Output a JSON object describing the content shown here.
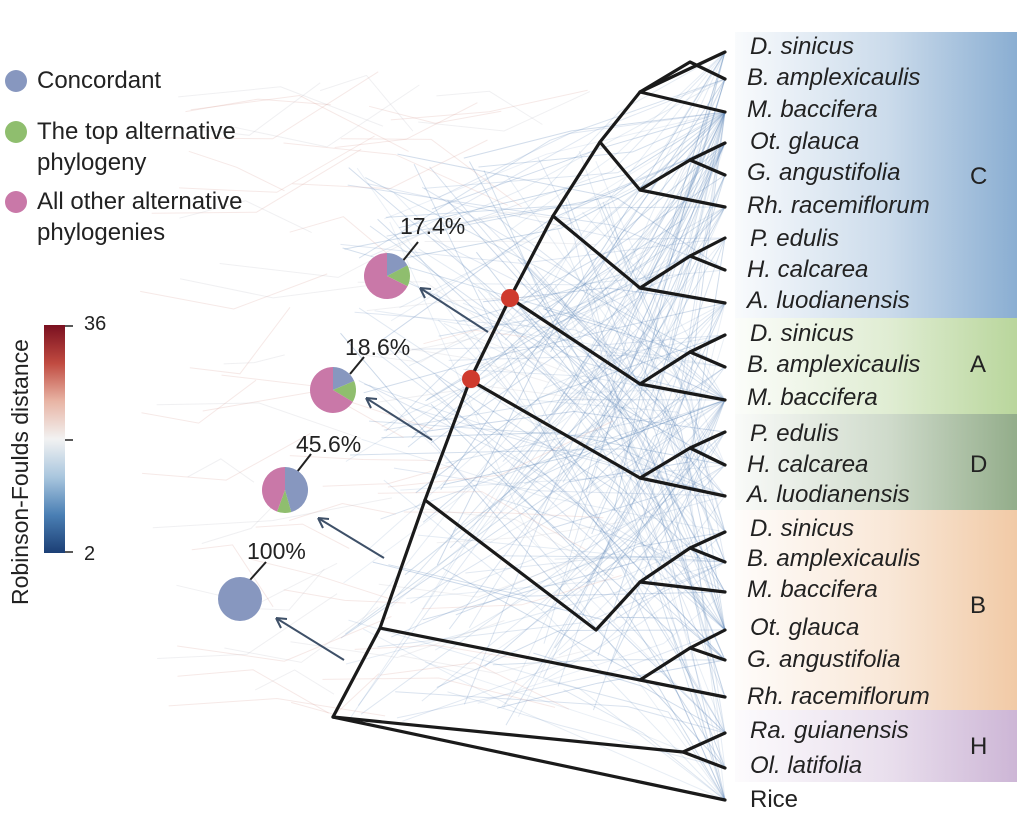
{
  "legend": {
    "items": [
      {
        "label_lines": [
          "Concordant"
        ],
        "color": "#8797bf"
      },
      {
        "label_lines": [
          "The top alternative",
          "phylogeny"
        ],
        "color": "#8fbe6e"
      },
      {
        "label_lines": [
          "All other alternative",
          "phylogenies"
        ],
        "color": "#c978a8"
      }
    ]
  },
  "colorbar": {
    "title": "Robinson-Foulds distance",
    "max_label": "36",
    "min_label": "2",
    "colors": [
      "#7a1020",
      "#c04a40",
      "#e8b4a4",
      "#f2f2f2",
      "#a9c6de",
      "#4a7fb4",
      "#1c3f75"
    ]
  },
  "taxa": [
    "D. sinicus",
    "B. amplexicaulis",
    "M. baccifera",
    "Ot. glauca",
    "G. angustifolia",
    "Rh. racemiflorum",
    "P. edulis",
    "H. calcarea",
    "A. luodianensis",
    "D. sinicus",
    "B. amplexicaulis",
    "M. baccifera",
    "P. edulis",
    "H. calcarea",
    "A. luodianensis",
    "D. sinicus",
    "B. amplexicaulis",
    "M. baccifera",
    "Ot. glauca",
    "G. angustifolia",
    "Rh. racemiflorum",
    "Ra. guianensis",
    "Ol. latifolia",
    "Rice"
  ],
  "clades": [
    {
      "label": "C",
      "color": "#8aaed2"
    },
    {
      "label": "A",
      "color": "#b9d69c"
    },
    {
      "label": "D",
      "color": "#93ad8a"
    },
    {
      "label": "B",
      "color": "#f1caa6"
    },
    {
      "label": "H",
      "color": "#cdb6d6"
    }
  ],
  "nodes": [
    {
      "pct": "17.4%",
      "concordant": 0.174,
      "top_alternative": 0.15,
      "other": 0.676
    },
    {
      "pct": "18.6%",
      "concordant": 0.186,
      "top_alternative": 0.15,
      "other": 0.664
    },
    {
      "pct": "45.6%",
      "concordant": 0.456,
      "top_alternative": 0.1,
      "other": 0.444
    },
    {
      "pct": "100%",
      "concordant": 1.0,
      "top_alternative": 0.0,
      "other": 0.0
    }
  ]
}
